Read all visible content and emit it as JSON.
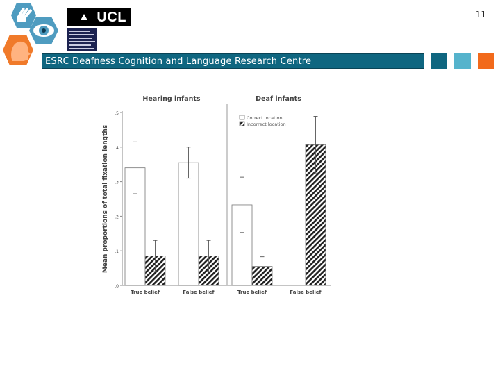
{
  "slide": {
    "page_number": "11",
    "banner_text": "ESRC Deafness Cognition and Language Research Centre",
    "ucl_logo_text": "UCL",
    "colors": {
      "banner": "#0f6680",
      "square_1": "#0f6680",
      "square_2": "#55b3cc",
      "square_3": "#f26a1b",
      "hex_blue": "#4f9cc0",
      "hex_orange": "#f07a2a"
    },
    "icons": [
      "hands-icon",
      "eye-icon",
      "head-profile-icon"
    ]
  },
  "chart_data": {
    "type": "bar",
    "ylabel": "Mean proportions of total fixation lengths",
    "ylim": [
      0,
      0.5
    ],
    "yticks": [
      0,
      0.1,
      0.2,
      0.3,
      0.4,
      0.5
    ],
    "ytick_labels": [
      ".0",
      ".1",
      ".2",
      ".3",
      ".4",
      ".5"
    ],
    "legend": {
      "placement": "top-right of second panel",
      "entries": [
        "Correct location",
        "Incorrect location"
      ]
    },
    "panels": [
      {
        "title": "Hearing infants",
        "categories": [
          "True belief",
          "False belief"
        ],
        "series": [
          {
            "name": "Correct location",
            "fill": "white",
            "values": [
              0.34,
              0.355
            ],
            "error": [
              0.075,
              0.045
            ]
          },
          {
            "name": "Incorrect location",
            "fill": "hatched",
            "values": [
              0.085,
              0.085
            ],
            "error": [
              0.045,
              0.045
            ]
          }
        ]
      },
      {
        "title": "Deaf infants",
        "categories": [
          "True belief",
          "False belief"
        ],
        "series": [
          {
            "name": "Correct location",
            "fill": "white",
            "values": [
              0.233,
              0.0
            ],
            "error": [
              0.08,
              0.0
            ]
          },
          {
            "name": "Incorrect location",
            "fill": "hatched",
            "values": [
              0.055,
              0.407
            ],
            "error": [
              0.028,
              0.082
            ]
          }
        ]
      }
    ]
  }
}
